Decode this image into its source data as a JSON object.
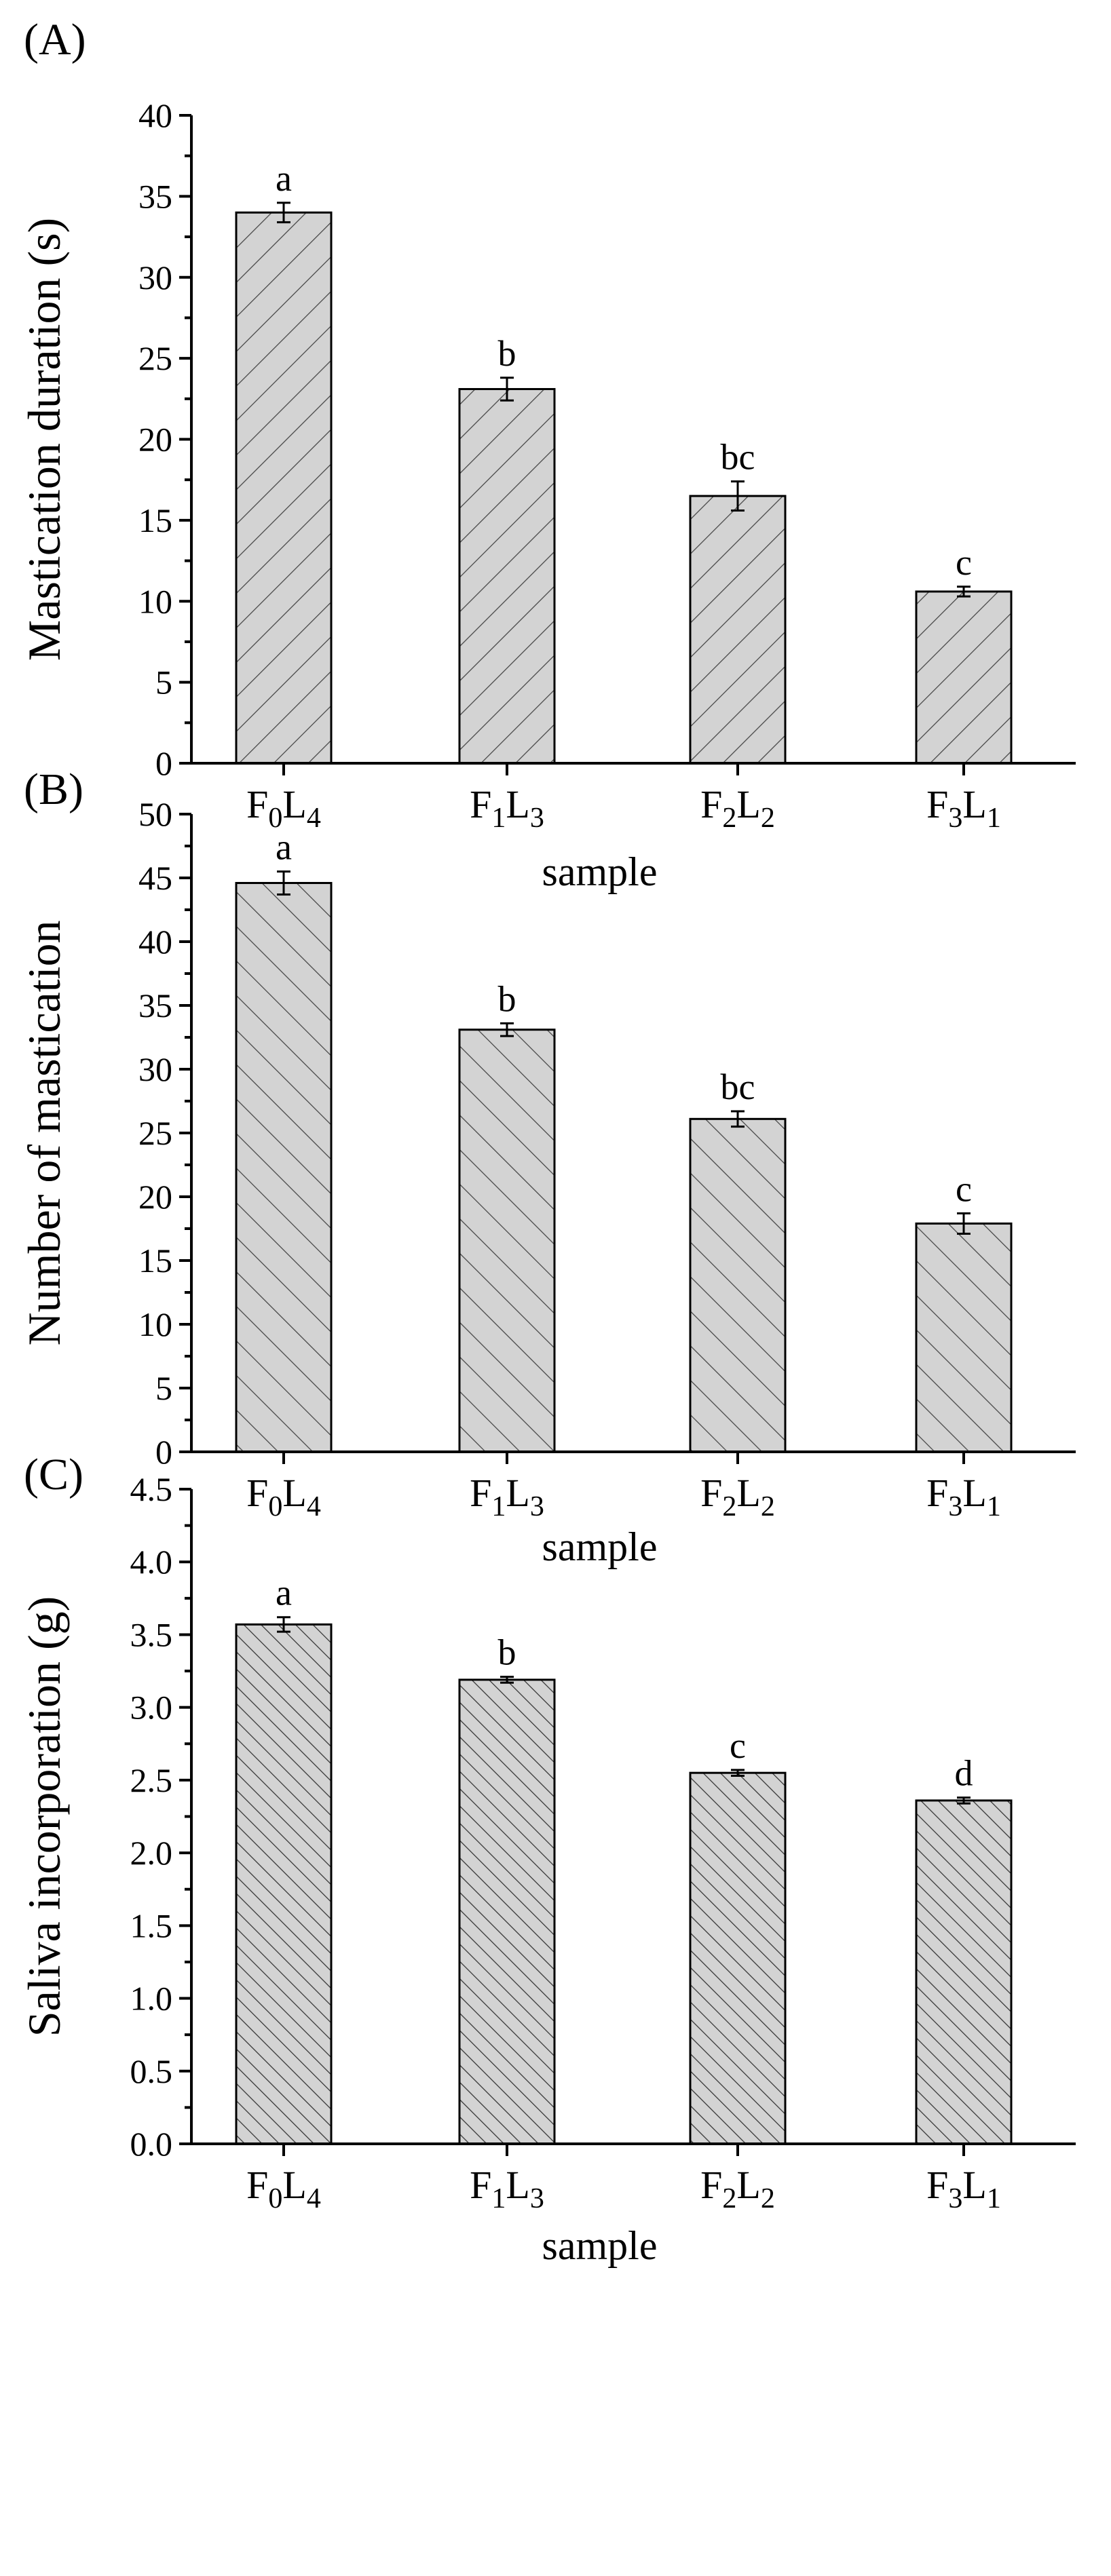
{
  "chart_data": [
    {
      "panel_label": "(A)",
      "type": "bar",
      "categories": [
        {
          "main": "F",
          "sub1": "0",
          "mid": "L",
          "sub2": "4"
        },
        {
          "main": "F",
          "sub1": "1",
          "mid": "L",
          "sub2": "3"
        },
        {
          "main": "F",
          "sub1": "2",
          "mid": "L",
          "sub2": "2"
        },
        {
          "main": "F",
          "sub1": "3",
          "mid": "L",
          "sub2": "1"
        }
      ],
      "values": [
        34.0,
        23.1,
        16.5,
        10.6
      ],
      "errors": [
        0.6,
        0.7,
        0.9,
        0.3
      ],
      "significance_letters": [
        "a",
        "b",
        "bc",
        "c"
      ],
      "xlabel": "sample",
      "ylabel": "Mastication duration (s)",
      "ylim": [
        0,
        40
      ],
      "yticks": [
        0,
        5,
        10,
        15,
        20,
        25,
        30,
        35,
        40
      ],
      "ytick_labels": [
        "0",
        "5",
        "10",
        "15",
        "20",
        "25",
        "30",
        "35",
        "40"
      ],
      "hatch": "forward-diagonal",
      "bar_fill": "#d3d3d3"
    },
    {
      "panel_label": "(B)",
      "type": "bar",
      "categories": [
        {
          "main": "F",
          "sub1": "0",
          "mid": "L",
          "sub2": "4"
        },
        {
          "main": "F",
          "sub1": "1",
          "mid": "L",
          "sub2": "3"
        },
        {
          "main": "F",
          "sub1": "2",
          "mid": "L",
          "sub2": "2"
        },
        {
          "main": "F",
          "sub1": "3",
          "mid": "L",
          "sub2": "1"
        }
      ],
      "values": [
        44.6,
        33.1,
        26.1,
        17.9
      ],
      "errors": [
        0.9,
        0.5,
        0.6,
        0.8
      ],
      "significance_letters": [
        "a",
        "b",
        "bc",
        "c"
      ],
      "xlabel": "sample",
      "ylabel": "Number of mastication",
      "ylim": [
        0,
        50
      ],
      "yticks": [
        0,
        5,
        10,
        15,
        20,
        25,
        30,
        35,
        40,
        45,
        50
      ],
      "ytick_labels": [
        "0",
        "5",
        "10",
        "15",
        "20",
        "25",
        "30",
        "35",
        "40",
        "45",
        "50"
      ],
      "hatch": "back-diagonal",
      "bar_fill": "#d3d3d3"
    },
    {
      "panel_label": "(C)",
      "type": "bar",
      "categories": [
        {
          "main": "F",
          "sub1": "0",
          "mid": "L",
          "sub2": "4"
        },
        {
          "main": "F",
          "sub1": "1",
          "mid": "L",
          "sub2": "3"
        },
        {
          "main": "F",
          "sub1": "2",
          "mid": "L",
          "sub2": "2"
        },
        {
          "main": "F",
          "sub1": "3",
          "mid": "L",
          "sub2": "1"
        }
      ],
      "values": [
        3.57,
        3.19,
        2.55,
        2.36
      ],
      "errors": [
        0.05,
        0.02,
        0.02,
        0.02
      ],
      "significance_letters": [
        "a",
        "b",
        "c",
        "d"
      ],
      "xlabel": "sample",
      "ylabel": "Saliva incorporation (g)",
      "ylim": [
        0,
        4.5
      ],
      "yticks": [
        0,
        0.5,
        1.0,
        1.5,
        2.0,
        2.5,
        3.0,
        3.5,
        4.0,
        4.5
      ],
      "ytick_labels": [
        "0.0",
        "0.5",
        "1.0",
        "1.5",
        "2.0",
        "2.5",
        "3.0",
        "3.5",
        "4.0",
        "4.5"
      ],
      "hatch": "back-diagonal-dense",
      "bar_fill": "#d3d3d3"
    }
  ]
}
